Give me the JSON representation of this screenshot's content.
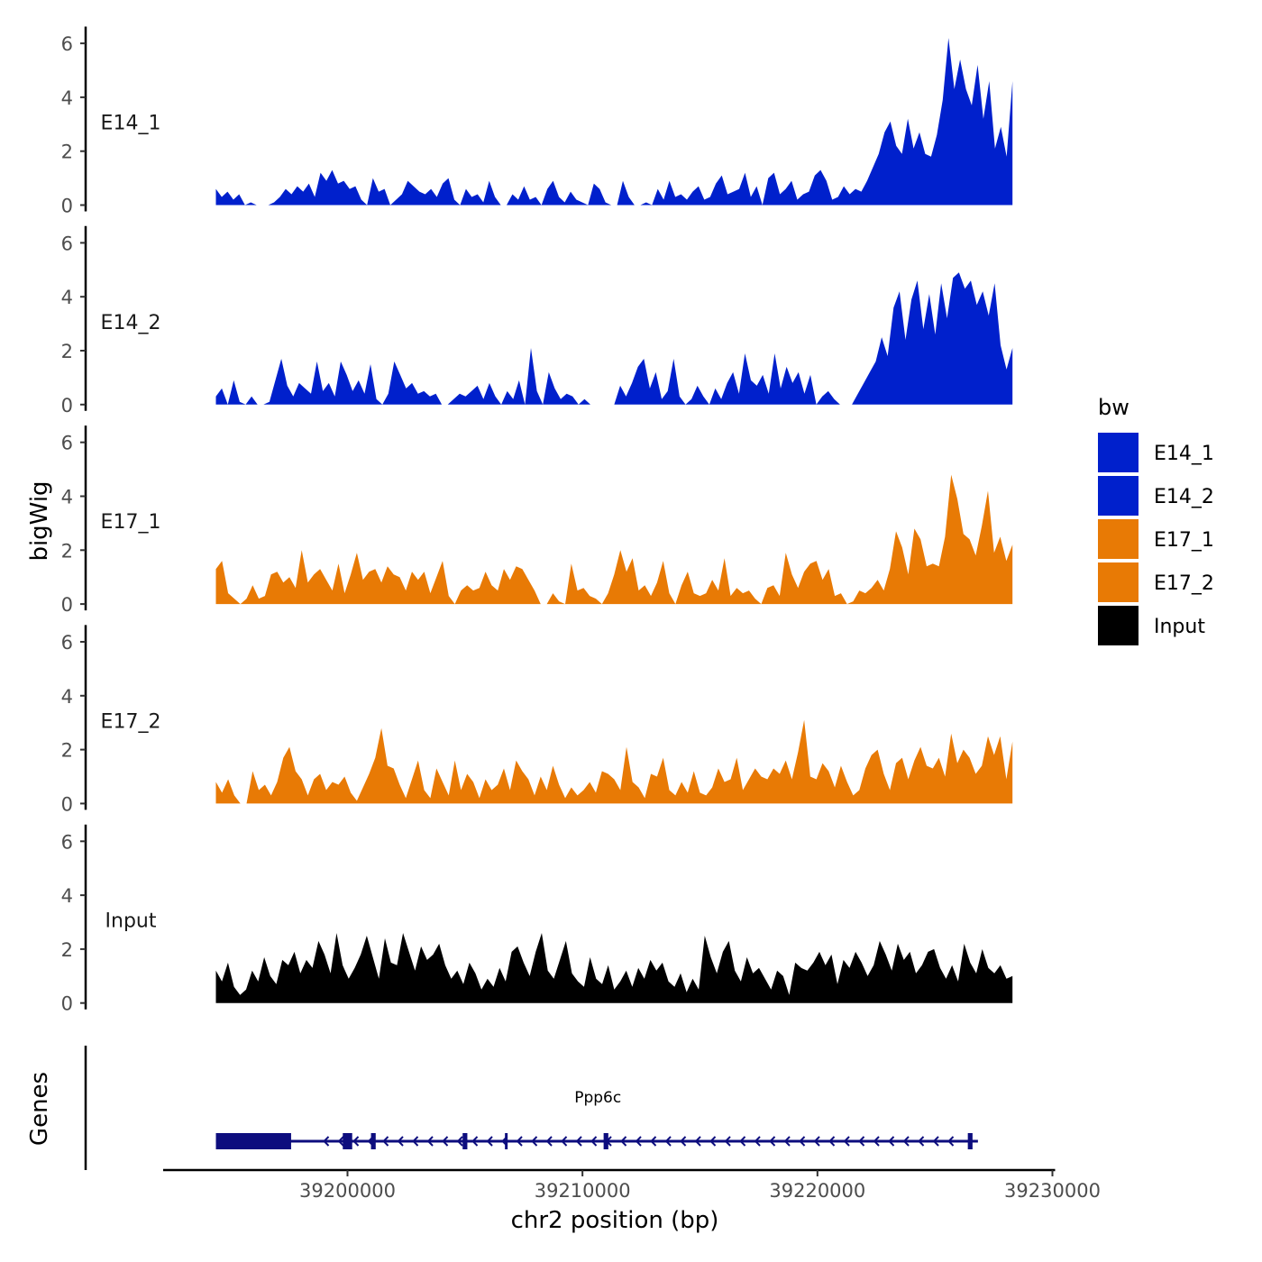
{
  "chart_data": {
    "type": "area",
    "title": "",
    "xlabel": "chr2 position (bp)",
    "ylabel": "bigWig",
    "genes_axis_label": "Genes",
    "xlim": [
      39192000,
      39230000
    ],
    "x_range": [
      39194400,
      39228300
    ],
    "x_ticks": [
      39200000,
      39210000,
      39220000,
      39230000
    ],
    "x_tick_labels": [
      "39200000",
      "39210000",
      "39220000",
      "39230000"
    ],
    "ylim": [
      0,
      6.5
    ],
    "y_ticks": [
      0,
      2,
      4,
      6
    ],
    "y_tick_labels": [
      "0",
      "2",
      "4",
      "6"
    ],
    "legend": {
      "title": "bw",
      "position": "right",
      "entries": [
        {
          "label": "E14_1",
          "color": "#0020CC"
        },
        {
          "label": "E14_2",
          "color": "#0020CC"
        },
        {
          "label": "E17_1",
          "color": "#E87A05"
        },
        {
          "label": "E17_2",
          "color": "#E87A05"
        },
        {
          "label": "Input",
          "color": "#000000"
        }
      ]
    },
    "series": [
      {
        "name": "E14_1",
        "color": "#0020CC",
        "values": [
          0.6,
          0.3,
          0.5,
          0.2,
          0.4,
          0,
          0.1,
          0,
          0,
          0,
          0.1,
          0.3,
          0.6,
          0.4,
          0.7,
          0.5,
          0.8,
          0.3,
          1.2,
          0.9,
          1.3,
          0.8,
          0.9,
          0.6,
          0.7,
          0.2,
          0,
          1.0,
          0.5,
          0.6,
          0,
          0.2,
          0.4,
          0.9,
          0.7,
          0.5,
          0.4,
          0.6,
          0.3,
          0.8,
          1.0,
          0.2,
          0,
          0.6,
          0.3,
          0.4,
          0.1,
          0.9,
          0.3,
          0,
          0,
          0.4,
          0.2,
          0.7,
          0.2,
          0.3,
          0,
          0.6,
          0.9,
          0.3,
          0.1,
          0.5,
          0.2,
          0.1,
          0,
          0.8,
          0.6,
          0.1,
          0,
          0,
          0.9,
          0.3,
          0,
          0,
          0.1,
          0,
          0.6,
          0.2,
          0.9,
          0.3,
          0.4,
          0.2,
          0.5,
          0.7,
          0.2,
          0.3,
          0.8,
          1.1,
          0.4,
          0.5,
          0.6,
          1.2,
          0.3,
          0.7,
          0,
          1.0,
          1.2,
          0.4,
          0.6,
          0.9,
          0.2,
          0.4,
          0.5,
          1.1,
          1.3,
          0.9,
          0.2,
          0.3,
          0.7,
          0.4,
          0.6,
          0.5,
          0.9,
          1.4,
          1.9,
          2.7,
          3.1,
          2.2,
          1.9,
          3.2,
          2.1,
          2.7,
          1.9,
          1.8,
          2.6,
          3.9,
          6.2,
          4.3,
          5.4,
          4.3,
          3.7,
          5.2,
          3.2,
          4.6,
          2.1,
          2.9,
          1.8,
          4.6
        ]
      },
      {
        "name": "E14_2",
        "color": "#0020CC",
        "values": [
          0.3,
          0.6,
          0,
          0.9,
          0.1,
          0,
          0.3,
          0,
          0,
          0.1,
          0.9,
          1.7,
          0.7,
          0.3,
          0.8,
          0.6,
          0.4,
          1.6,
          0.5,
          0.8,
          0.3,
          1.6,
          1.1,
          0.5,
          0.9,
          0.4,
          1.5,
          0.2,
          0,
          0.4,
          1.6,
          1.1,
          0.6,
          0.8,
          0.4,
          0.5,
          0.3,
          0.4,
          0,
          0,
          0.2,
          0.4,
          0.3,
          0.5,
          0.7,
          0.2,
          0.8,
          0.3,
          0,
          0.5,
          0.2,
          0.9,
          0,
          2.1,
          0.5,
          0,
          1.2,
          0.6,
          0.2,
          0.4,
          0.3,
          0,
          0.2,
          0,
          0,
          0,
          0,
          0,
          0.7,
          0.3,
          0.8,
          1.4,
          1.7,
          0.6,
          1.2,
          0.2,
          0.5,
          1.7,
          0.3,
          0,
          0.2,
          0.7,
          0.3,
          0,
          0.6,
          0.2,
          0.8,
          1.2,
          0.4,
          1.9,
          0.9,
          0.7,
          1.1,
          0.4,
          1.9,
          0.6,
          1.4,
          0.8,
          1.2,
          0.4,
          1.1,
          0,
          0.3,
          0.5,
          0.2,
          0,
          0,
          0,
          0.4,
          0.8,
          1.2,
          1.6,
          2.5,
          1.8,
          3.6,
          4.2,
          2.4,
          3.9,
          4.6,
          2.8,
          4.1,
          2.6,
          4.5,
          3.2,
          4.7,
          4.9,
          4.3,
          4.6,
          3.7,
          4.2,
          3.3,
          4.5,
          2.2,
          1.3,
          2.1
        ]
      },
      {
        "name": "E17_1",
        "color": "#E87A05",
        "values": [
          1.3,
          1.6,
          0.4,
          0.2,
          0,
          0.2,
          0.7,
          0.2,
          0.3,
          1.1,
          1.2,
          0.8,
          1.0,
          0.6,
          2.0,
          0.8,
          1.1,
          1.3,
          0.9,
          0.5,
          1.5,
          0.4,
          1.1,
          1.9,
          0.9,
          1.2,
          1.3,
          0.8,
          1.4,
          1.1,
          1.0,
          0.5,
          1.2,
          0.9,
          1.2,
          0.4,
          1.0,
          1.6,
          0.3,
          0,
          0.5,
          0.7,
          0.5,
          0.6,
          1.2,
          0.7,
          0.5,
          1.3,
          0.9,
          1.4,
          1.3,
          0.9,
          0.5,
          0,
          0,
          0.4,
          0.1,
          0,
          1.5,
          0.5,
          0.6,
          0.3,
          0.2,
          0,
          0.4,
          1.1,
          2.0,
          1.2,
          1.7,
          0.5,
          0.7,
          0.3,
          0.8,
          1.6,
          0.4,
          0,
          0.7,
          1.2,
          0.4,
          0.3,
          0.4,
          0.9,
          0.5,
          1.7,
          0.3,
          0.6,
          0.4,
          0.5,
          0.2,
          0,
          0.6,
          0.7,
          0.3,
          1.9,
          1.1,
          0.6,
          1.2,
          1.5,
          1.6,
          0.9,
          1.3,
          0.3,
          0.4,
          0,
          0.1,
          0.5,
          0.4,
          0.6,
          0.9,
          0.5,
          1.3,
          2.7,
          2.1,
          1.1,
          2.8,
          2.4,
          1.4,
          1.5,
          1.4,
          2.5,
          4.8,
          3.9,
          2.6,
          2.4,
          1.8,
          2.9,
          4.2,
          1.9,
          2.5,
          1.6,
          2.2
        ]
      },
      {
        "name": "E17_2",
        "color": "#E87A05",
        "values": [
          0.8,
          0.4,
          0.9,
          0.3,
          0,
          0,
          1.2,
          0.5,
          0.7,
          0.3,
          0.8,
          1.7,
          2.1,
          1.2,
          0.9,
          0.3,
          0.9,
          1.1,
          0.5,
          0.8,
          0.7,
          1.0,
          0.4,
          0.1,
          0.6,
          1.1,
          1.7,
          2.8,
          1.4,
          1.3,
          0.7,
          0.2,
          0.9,
          1.6,
          0.5,
          0.2,
          1.3,
          0.8,
          0.3,
          1.6,
          0.5,
          1.1,
          0.8,
          0.2,
          0.9,
          0.5,
          0.7,
          1.3,
          0.5,
          1.6,
          1.2,
          0.9,
          0.3,
          1.0,
          0.5,
          1.4,
          0.7,
          0.2,
          0.6,
          0.3,
          0.5,
          0.8,
          0.4,
          1.2,
          1.1,
          0.9,
          0.5,
          2.1,
          0.8,
          0.6,
          0.2,
          1.1,
          1.0,
          1.7,
          0.5,
          0.3,
          0.8,
          0.4,
          1.2,
          0.4,
          0.3,
          0.6,
          1.3,
          0.8,
          0.9,
          1.7,
          0.5,
          0.9,
          1.3,
          1.0,
          0.9,
          1.3,
          1.1,
          1.6,
          0.9,
          1.9,
          3.1,
          1.0,
          0.9,
          1.5,
          1.2,
          0.6,
          1.4,
          0.8,
          0.3,
          0.5,
          1.3,
          1.8,
          2.0,
          1.1,
          0.5,
          1.5,
          1.7,
          0.9,
          1.6,
          2.1,
          1.4,
          1.3,
          1.7,
          1.0,
          2.6,
          1.5,
          2.0,
          1.7,
          1.1,
          1.4,
          2.5,
          1.8,
          2.5,
          0.9,
          2.3
        ]
      },
      {
        "name": "Input",
        "color": "#000000",
        "values": [
          1.2,
          0.8,
          1.5,
          0.6,
          0.3,
          0.5,
          1.2,
          0.8,
          1.7,
          1.0,
          0.7,
          1.6,
          1.4,
          1.9,
          1.1,
          1.6,
          1.3,
          2.3,
          1.8,
          1.1,
          2.6,
          1.4,
          0.9,
          1.3,
          1.8,
          2.5,
          1.7,
          0.9,
          2.4,
          1.5,
          1.4,
          2.6,
          1.9,
          1.2,
          2.1,
          1.6,
          1.8,
          2.2,
          1.4,
          0.9,
          1.2,
          0.7,
          1.5,
          1.1,
          0.5,
          0.9,
          0.6,
          1.3,
          0.8,
          1.9,
          2.1,
          1.5,
          1.0,
          1.9,
          2.6,
          1.2,
          0.9,
          1.6,
          2.3,
          1.1,
          0.8,
          0.6,
          1.7,
          0.9,
          0.7,
          1.4,
          0.5,
          0.8,
          1.2,
          0.6,
          1.3,
          0.9,
          1.6,
          1.2,
          1.5,
          0.8,
          0.6,
          1.1,
          0.4,
          0.9,
          0.5,
          2.5,
          1.7,
          1.1,
          1.9,
          2.3,
          1.2,
          0.8,
          1.7,
          1.1,
          1.3,
          0.9,
          0.5,
          1.2,
          1.0,
          0.3,
          1.5,
          1.3,
          1.2,
          1.5,
          1.9,
          1.4,
          1.8,
          0.7,
          1.6,
          1.3,
          1.9,
          1.5,
          1.0,
          1.4,
          2.3,
          1.8,
          1.2,
          2.2,
          1.6,
          1.9,
          1.1,
          1.4,
          1.9,
          2.0,
          1.3,
          0.9,
          1.4,
          0.8,
          2.2,
          1.5,
          1.1,
          2.0,
          1.3,
          1.1,
          1.4,
          0.9,
          1.0
        ]
      }
    ],
    "gene_track": {
      "gene_name": "Ppp6c",
      "start": 39194400,
      "end": 39226600,
      "strand": "-",
      "color": "#0D0D7E",
      "exons": [
        {
          "start": 39194400,
          "end": 39197600
        },
        {
          "start": 39199800,
          "end": 39200200
        },
        {
          "start": 39201000,
          "end": 39201200
        },
        {
          "start": 39204900,
          "end": 39205100
        },
        {
          "start": 39206700,
          "end": 39206800
        },
        {
          "start": 39210900,
          "end": 39211100
        },
        {
          "start": 39226400,
          "end": 39226600
        }
      ]
    }
  }
}
